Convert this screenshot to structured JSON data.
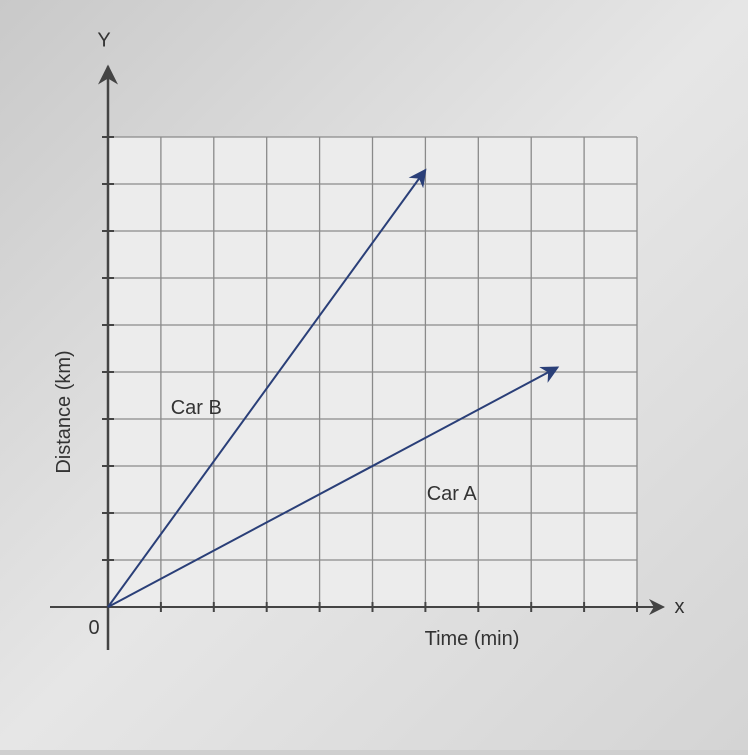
{
  "chart_data": {
    "type": "line",
    "x_label": "Time (min)",
    "y_label": "Distance (km)",
    "x_axis_letter": "x",
    "y_axis_letter": "Y",
    "xlim": [
      0,
      10.5
    ],
    "ylim": [
      0,
      11.5
    ],
    "xticks": [
      0
    ],
    "gridlines": {
      "x": [
        1,
        2,
        3,
        4,
        5,
        6,
        7,
        8,
        9,
        10
      ],
      "y": [
        1,
        2,
        3,
        4,
        5,
        6,
        7,
        8,
        9,
        10
      ]
    },
    "grid": true,
    "series": [
      {
        "name": "Car A",
        "color": "#2a3f78",
        "x": [
          0,
          8.5
        ],
        "values": [
          0,
          5.1
        ]
      },
      {
        "name": "Car B",
        "color": "#2a3f78",
        "x": [
          0,
          6
        ],
        "values": [
          0,
          9.3
        ]
      }
    ]
  }
}
